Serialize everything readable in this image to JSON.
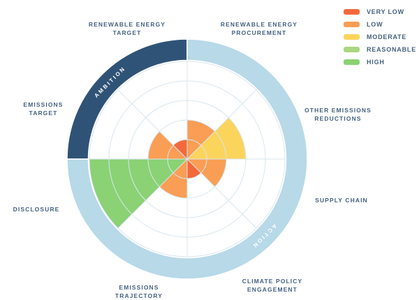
{
  "legend": {
    "items": [
      {
        "label": "VERY LOW",
        "color": "#f3693c"
      },
      {
        "label": "LOW",
        "color": "#f99e54"
      },
      {
        "label": "MODERATE",
        "color": "#fbd45c"
      },
      {
        "label": "REASONABLE",
        "color": "#abd67f"
      },
      {
        "label": "HIGH",
        "color": "#8ad274"
      }
    ]
  },
  "chart_data": {
    "type": "polar-sector",
    "direction": "clockwise-from-top",
    "sector_angle_deg": 45,
    "rings": 5,
    "max_level": 5,
    "grid": true,
    "legend_position": "top-right",
    "level_labels": [
      "VERY LOW",
      "LOW",
      "MODERATE",
      "REASONABLE",
      "HIGH"
    ],
    "level_colors": [
      "#f3693c",
      "#f99e54",
      "#fbd45c",
      "#abd67f",
      "#8ad274"
    ],
    "grid_color": "#d9e6ee",
    "label_color": "#456181",
    "categories": [
      {
        "label": "RENEWABLE ENERGY PROCUREMENT",
        "label_lines": "RENEWABLE ENERGY\nPROCUREMENT",
        "value": 2,
        "level": "LOW"
      },
      {
        "label": "OTHER EMISSIONS REDUCTIONS",
        "label_lines": "OTHER EMISSIONS\nREDUCTIONS",
        "value": 3,
        "level": "MODERATE"
      },
      {
        "label": "SUPPLY CHAIN",
        "label_lines": "SUPPLY CHAIN",
        "value": 2,
        "level": "LOW"
      },
      {
        "label": "CLIMATE POLICY ENGAGEMENT",
        "label_lines": "CLIMATE POLICY\nENGAGEMENT",
        "value": 1,
        "level": "VERY LOW"
      },
      {
        "label": "EMISSIONS TRAJECTORY",
        "label_lines": "EMISSIONS\nTRAJECTORY",
        "value": 2,
        "level": "LOW"
      },
      {
        "label": "DISCLOSURE",
        "label_lines": "DISCLOSURE",
        "value": 5,
        "level": "HIGH"
      },
      {
        "label": "EMISSIONS TARGET",
        "label_lines": "EMISSIONS\nTARGET",
        "value": 2,
        "level": "LOW"
      },
      {
        "label": "RENEWABLE ENERGY TARGET",
        "label_lines": "RENEWABLE ENERGY\nTARGET",
        "value": 1,
        "level": "VERY LOW"
      }
    ],
    "groups": [
      {
        "label": "AMBITION",
        "color": "#2f5377",
        "start_deg": 270,
        "end_deg": 360,
        "text_color": "#ffffff"
      },
      {
        "label": "ACTION",
        "color": "#b7d9e8",
        "start_deg": 0,
        "end_deg": 270,
        "text_color": "#ffffff"
      }
    ]
  }
}
